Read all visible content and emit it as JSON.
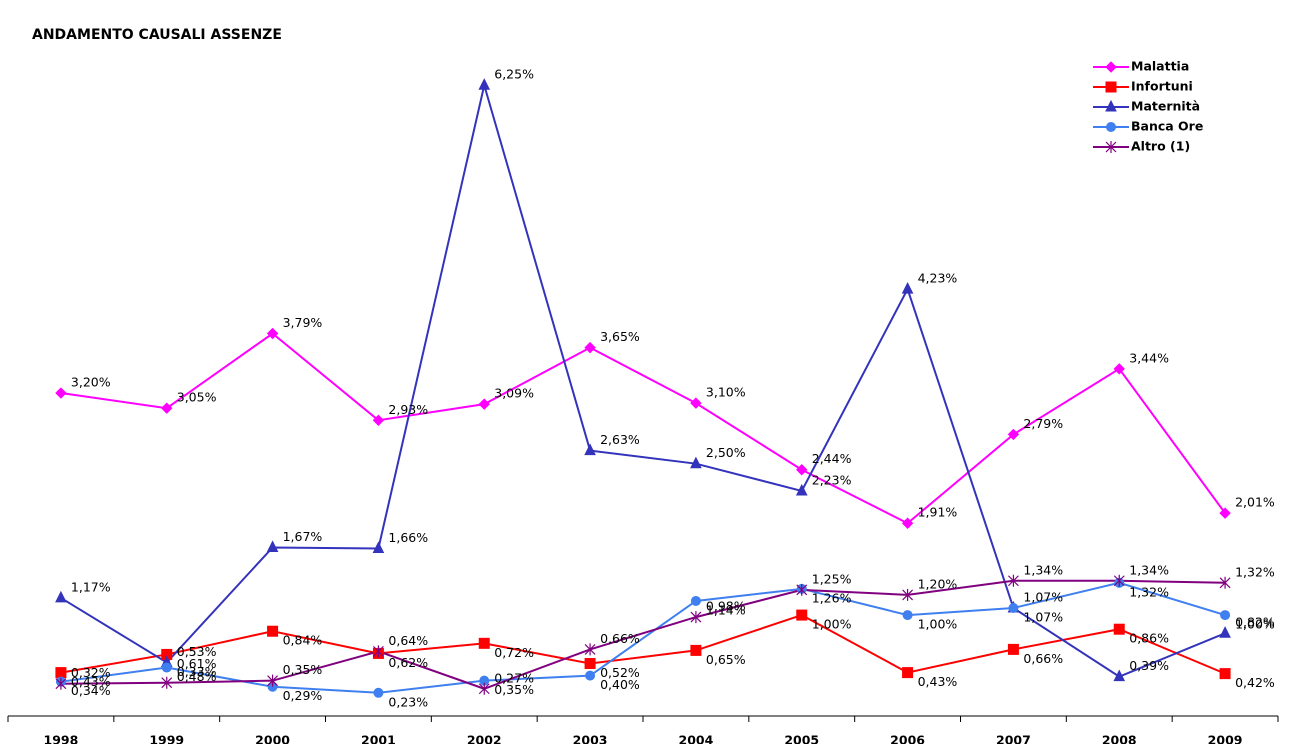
{
  "chart_data": {
    "type": "line",
    "title": "ANDAMENTO CAUSALI ASSENZE",
    "categories": [
      "1998",
      "1999",
      "2000",
      "2001",
      "2002",
      "2003",
      "2004",
      "2005",
      "2006",
      "2007",
      "2008",
      "2009"
    ],
    "ylim": [
      0,
      6.5
    ],
    "legend": "top-right",
    "series": [
      {
        "name": "Malattia",
        "color": "#ff00ff",
        "marker": "diamond",
        "values": [
          3.2,
          3.05,
          3.79,
          2.93,
          3.09,
          3.65,
          3.1,
          2.44,
          1.91,
          2.79,
          3.44,
          2.01
        ],
        "value_labels": [
          "3,20%",
          "3,05%",
          "3,79%",
          "2,93%",
          "3,09%",
          "3,65%",
          "3,10%",
          "2,44%",
          "1,91%",
          "2,79%",
          "3,44%",
          "2,01%"
        ]
      },
      {
        "name": "Infortuni",
        "color": "#ff0000",
        "marker": "square",
        "values": [
          0.43,
          0.61,
          0.84,
          0.62,
          0.72,
          0.52,
          0.65,
          1.0,
          0.43,
          0.66,
          0.86,
          0.42
        ],
        "value_labels": [
          "0,43%",
          "0,61%",
          "0,84%",
          "0,62%",
          "0,72%",
          "0,52%",
          "0,65%",
          "1,00%",
          "0,43%",
          "0,66%",
          "0,86%",
          "0,42%"
        ]
      },
      {
        "name": "Maternità",
        "color": "#3333bb",
        "marker": "triangle",
        "values": [
          1.17,
          0.53,
          1.67,
          1.66,
          6.25,
          2.63,
          2.5,
          2.23,
          4.23,
          1.07,
          0.39,
          0.82
        ],
        "value_labels": [
          "1,17%",
          "0,53%",
          "1,67%",
          "1,66%",
          "6,25%",
          "2,63%",
          "2,50%",
          "2,23%",
          "4,23%",
          "1,07%",
          "0,39%",
          "0,82%"
        ]
      },
      {
        "name": "Banca Ore",
        "color": "#3f7fef",
        "marker": "circle",
        "values": [
          0.34,
          0.48,
          0.29,
          0.23,
          0.35,
          0.4,
          1.14,
          1.26,
          1.0,
          1.07,
          1.32,
          1.0
        ],
        "value_labels": [
          "0,34%",
          "0,48%",
          "0,29%",
          "0,23%",
          "0,35%",
          "0,40%",
          "1,14%",
          "1,26%",
          "1,00%",
          "1,07%",
          "1,32%",
          "1,00%"
        ]
      },
      {
        "name": "Altro (1)",
        "color": "#800080",
        "marker": "star",
        "values": [
          0.32,
          0.33,
          0.35,
          0.64,
          0.27,
          0.66,
          0.98,
          1.25,
          1.2,
          1.34,
          1.34,
          1.32
        ],
        "value_labels": [
          "0,32%",
          "0,33%",
          "0,35%",
          "0,64%",
          "0,27%",
          "0,66%",
          "0,98%",
          "1,25%",
          "1,20%",
          "1,34%",
          "1,34%",
          "1,32%"
        ]
      }
    ]
  }
}
